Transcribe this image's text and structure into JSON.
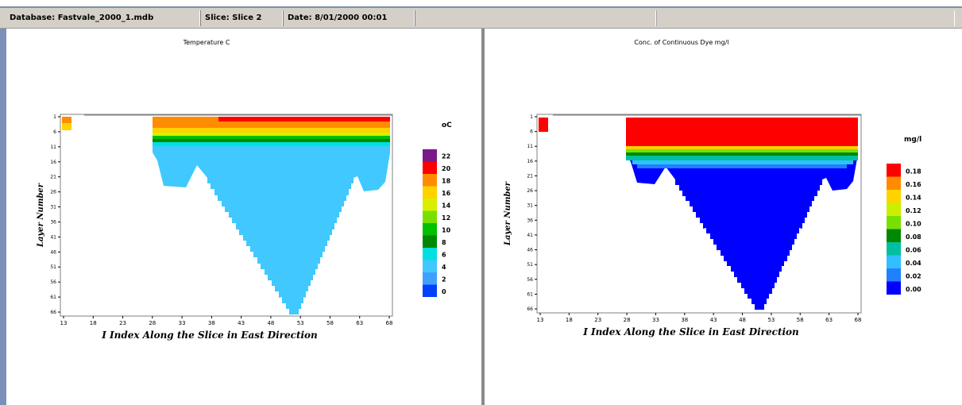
{
  "status_bar": {
    "database": "Database: Fastvale_2000_1.mdb",
    "slice": "Slice: Slice 2",
    "date": "Date: 8/01/2000 00:01"
  },
  "plots": [
    {
      "title": "Temperature C",
      "unit": "oC",
      "xlabel": "I Index Along the Slice in East Direction",
      "ylabel": "Layer Number",
      "xticks": [
        "13",
        "18",
        "23",
        "28",
        "33",
        "38",
        "43",
        "48",
        "53",
        "58",
        "63",
        "68"
      ],
      "yticks": [
        "1",
        "6",
        "11",
        "16",
        "21",
        "26",
        "31",
        "36",
        "41",
        "46",
        "51",
        "56",
        "61",
        "66"
      ],
      "legend_labels": [
        "22",
        "20",
        "18",
        "16",
        "14",
        "12",
        "10",
        "8",
        "6",
        "4",
        "2",
        "0"
      ]
    },
    {
      "title": "Conc. of Continuous Dye mg/l",
      "unit": "mg/l",
      "xlabel": "I Index Along the Slice in East Direction",
      "ylabel": "Layer Number",
      "xticks": [
        "13",
        "18",
        "23",
        "28",
        "33",
        "38",
        "43",
        "48",
        "53",
        "58",
        "63",
        "68"
      ],
      "yticks": [
        "1",
        "6",
        "11",
        "16",
        "21",
        "26",
        "31",
        "36",
        "41",
        "46",
        "51",
        "56",
        "61",
        "66"
      ],
      "legend_labels": [
        "0.18",
        "0.16",
        "0.14",
        "0.12",
        "0.10",
        "0.08",
        "0.06",
        "0.04",
        "0.02",
        "0.00"
      ]
    }
  ],
  "colors": {
    "temperature_scale": [
      "#7a1a8a",
      "#ff0000",
      "#ff8c00",
      "#ffd200",
      "#d8f000",
      "#78e000",
      "#00c000",
      "#008800",
      "#00e0e0",
      "#40c8ff",
      "#3fa0ff",
      "#0040ff"
    ],
    "dye_scale": [
      "#ff0000",
      "#ff8c00",
      "#ffd200",
      "#c8f000",
      "#78e000",
      "#008800",
      "#00c0a0",
      "#30c0ff",
      "#2080ff",
      "#0000ff"
    ],
    "temp_body": "#40c8ff",
    "dye_body": "#0000ff"
  }
}
